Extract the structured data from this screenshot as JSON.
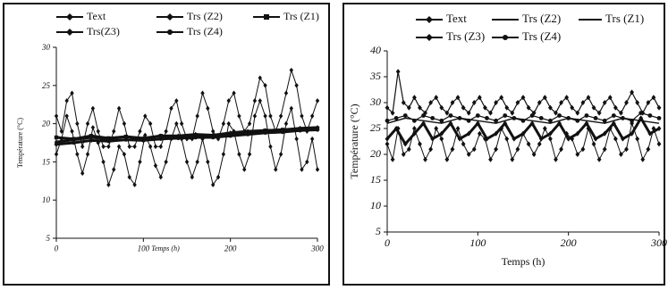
{
  "chart_data": [
    {
      "type": "line",
      "xlabel": "Temps (h)",
      "ylabel": "Température (°C)",
      "xlim": [
        0,
        300
      ],
      "ylim": [
        5,
        30
      ],
      "xticks": [
        "0",
        "100",
        "200",
        "300"
      ],
      "yticks": [
        "5",
        "10",
        "15",
        "20",
        "25",
        "30"
      ],
      "grid": false,
      "legend": "top",
      "series": [
        {
          "name": "Text",
          "marker": "diamond",
          "x": [
            0,
            6,
            12,
            18,
            24,
            30,
            36,
            42,
            48,
            54,
            60,
            66,
            72,
            78,
            84,
            90,
            96,
            102,
            108,
            114,
            120,
            126,
            132,
            138,
            144,
            150,
            156,
            162,
            168,
            174,
            180,
            186,
            192,
            198,
            204,
            210,
            216,
            222,
            228,
            234,
            240,
            246,
            252,
            258,
            264,
            270,
            276,
            282,
            288,
            294,
            300
          ],
          "values": [
            16,
            18,
            21,
            19,
            16,
            13.5,
            16,
            19.5,
            17.5,
            15,
            12,
            14,
            17,
            16,
            13,
            12,
            15,
            18.5,
            17,
            14.5,
            13,
            15,
            18,
            20,
            18,
            15,
            13,
            15,
            18,
            15,
            12,
            13,
            16,
            20,
            19,
            16,
            14,
            16,
            21,
            23,
            21,
            17,
            14,
            16,
            20,
            22,
            18,
            14,
            15,
            18,
            14
          ]
        },
        {
          "name": "Trs (Z2)",
          "marker": "diamond",
          "x": [
            0,
            6,
            12,
            18,
            24,
            30,
            36,
            42,
            48,
            54,
            60,
            66,
            72,
            78,
            84,
            90,
            96,
            102,
            108,
            114,
            120,
            126,
            132,
            138,
            144,
            150,
            156,
            162,
            168,
            174,
            180,
            186,
            192,
            198,
            204,
            210,
            216,
            222,
            228,
            234,
            240,
            246,
            252,
            258,
            264,
            270,
            276,
            282,
            288,
            294,
            300
          ],
          "values": [
            21,
            19,
            23,
            24,
            20,
            17,
            20,
            22,
            19,
            17,
            17,
            19,
            22,
            20,
            17,
            17,
            19,
            21,
            20,
            17,
            17,
            19,
            22,
            23,
            20,
            18,
            18,
            21,
            24,
            22,
            19,
            18,
            20,
            23,
            24,
            21,
            19,
            20,
            23,
            26,
            25,
            21,
            19,
            21,
            24,
            27,
            25,
            21,
            19,
            21,
            23
          ]
        },
        {
          "name": "Trs (Z1)",
          "marker": "square",
          "x": [
            0,
            20,
            40,
            60,
            80,
            100,
            120,
            140,
            160,
            180,
            200,
            220,
            240,
            260,
            280,
            300
          ],
          "values": [
            18.2,
            18.0,
            18.4,
            18.1,
            18.3,
            18.0,
            18.4,
            18.2,
            18.5,
            18.3,
            18.7,
            18.9,
            19.1,
            19.2,
            19.3,
            19.4
          ]
        },
        {
          "name": "Trs(Z3)",
          "marker": "diamond",
          "x": [
            0,
            20,
            40,
            60,
            80,
            100,
            120,
            140,
            160,
            180,
            200,
            220,
            240,
            260,
            280,
            300
          ],
          "values": [
            17.6,
            17.9,
            18.2,
            18.0,
            18.3,
            18.1,
            18.4,
            18.4,
            18.6,
            18.5,
            18.8,
            19.0,
            19.1,
            19.2,
            19.4,
            19.5
          ]
        },
        {
          "name": "Trs (Z4)",
          "marker": "circle",
          "x": [
            0,
            20,
            40,
            60,
            80,
            100,
            120,
            140,
            160,
            180,
            200,
            220,
            240,
            260,
            280,
            300
          ],
          "values": [
            17.3,
            17.5,
            17.8,
            17.7,
            17.9,
            17.8,
            18.0,
            18.1,
            18.2,
            18.2,
            18.4,
            18.6,
            18.8,
            18.9,
            19.1,
            19.2
          ]
        }
      ]
    },
    {
      "type": "line",
      "xlabel": "Temps (h)",
      "ylabel": "Température (°C)",
      "xlim": [
        0,
        300
      ],
      "ylim": [
        5,
        40
      ],
      "xticks": [
        "0",
        "100",
        "200",
        "300"
      ],
      "yticks": [
        "5",
        "10",
        "15",
        "20",
        "25",
        "30",
        "35",
        "40"
      ],
      "grid": false,
      "legend": "top",
      "series": [
        {
          "name": "Text",
          "marker": "diamond",
          "x": [
            0,
            6,
            12,
            18,
            24,
            30,
            36,
            42,
            48,
            54,
            60,
            66,
            72,
            78,
            84,
            90,
            96,
            102,
            108,
            114,
            120,
            126,
            132,
            138,
            144,
            150,
            156,
            162,
            168,
            174,
            180,
            186,
            192,
            198,
            204,
            210,
            216,
            222,
            228,
            234,
            240,
            246,
            252,
            258,
            264,
            270,
            276,
            282,
            288,
            294,
            300
          ],
          "values": [
            22,
            19,
            25,
            20,
            21,
            25,
            22,
            19,
            21,
            25,
            23,
            19,
            21,
            25,
            22,
            20,
            21,
            24,
            23,
            19,
            21,
            25,
            23,
            19,
            21,
            24,
            22,
            20,
            22,
            25,
            23,
            19,
            21,
            24,
            23,
            20,
            21,
            25,
            22,
            19,
            21,
            25,
            23,
            20,
            21,
            26,
            23,
            19,
            21,
            25,
            22
          ]
        },
        {
          "name": "Trs (Z2)",
          "marker": "diamond",
          "x": [
            0,
            6,
            12,
            18,
            24,
            30,
            36,
            42,
            48,
            54,
            60,
            66,
            72,
            78,
            84,
            90,
            96,
            102,
            108,
            114,
            120,
            126,
            132,
            138,
            144,
            150,
            156,
            162,
            168,
            174,
            180,
            186,
            192,
            198,
            204,
            210,
            216,
            222,
            228,
            234,
            240,
            246,
            252,
            258,
            264,
            270,
            276,
            282,
            288,
            294,
            300
          ],
          "values": [
            29,
            28,
            36,
            30,
            29,
            31,
            29,
            28,
            30,
            31,
            29,
            28,
            30,
            31,
            29,
            28,
            30,
            31,
            29,
            28,
            30,
            31,
            29,
            28,
            30,
            31,
            29,
            28,
            30,
            31,
            29,
            28,
            30,
            31,
            29,
            28,
            30,
            31,
            29,
            28,
            30,
            31,
            29,
            28,
            30,
            32,
            30,
            28,
            30,
            31,
            29
          ]
        },
        {
          "name": "Trs (Z1)",
          "marker": "none",
          "x": [
            0,
            20,
            40,
            60,
            80,
            100,
            120,
            140,
            160,
            180,
            200,
            220,
            240,
            260,
            280,
            300
          ],
          "values": [
            26,
            27,
            26.5,
            26,
            27,
            26.5,
            26,
            27,
            26.5,
            26,
            27,
            26.5,
            26,
            27,
            26.5,
            26
          ]
        },
        {
          "name": "Trs (Z3)",
          "marker": "diamond",
          "x": [
            0,
            10,
            20,
            30,
            40,
            50,
            60,
            70,
            80,
            90,
            100,
            110,
            120,
            130,
            140,
            150,
            160,
            170,
            180,
            190,
            200,
            210,
            220,
            230,
            240,
            250,
            260,
            270,
            280,
            290,
            300
          ],
          "values": [
            23,
            25,
            22,
            24,
            26,
            23,
            24,
            26,
            23,
            24,
            26,
            23,
            24,
            26,
            23,
            24,
            26,
            23,
            24,
            26,
            23,
            24,
            26,
            23,
            24,
            26,
            23,
            24,
            27,
            24,
            25
          ]
        },
        {
          "name": "Trs (Z4)",
          "marker": "circle",
          "x": [
            0,
            10,
            20,
            30,
            40,
            50,
            60,
            70,
            80,
            90,
            100,
            110,
            120,
            130,
            140,
            150,
            160,
            170,
            180,
            190,
            200,
            210,
            220,
            230,
            240,
            250,
            260,
            270,
            280,
            290,
            300
          ],
          "values": [
            26.5,
            27,
            27.5,
            26.5,
            27.5,
            27,
            26.5,
            27.5,
            27,
            26.5,
            27.5,
            27,
            26.5,
            27.5,
            27,
            26.5,
            27.5,
            27,
            26.5,
            27.5,
            27,
            26.5,
            27.5,
            27,
            26.5,
            27.5,
            27,
            26.5,
            28,
            27.5,
            27
          ]
        }
      ]
    }
  ]
}
